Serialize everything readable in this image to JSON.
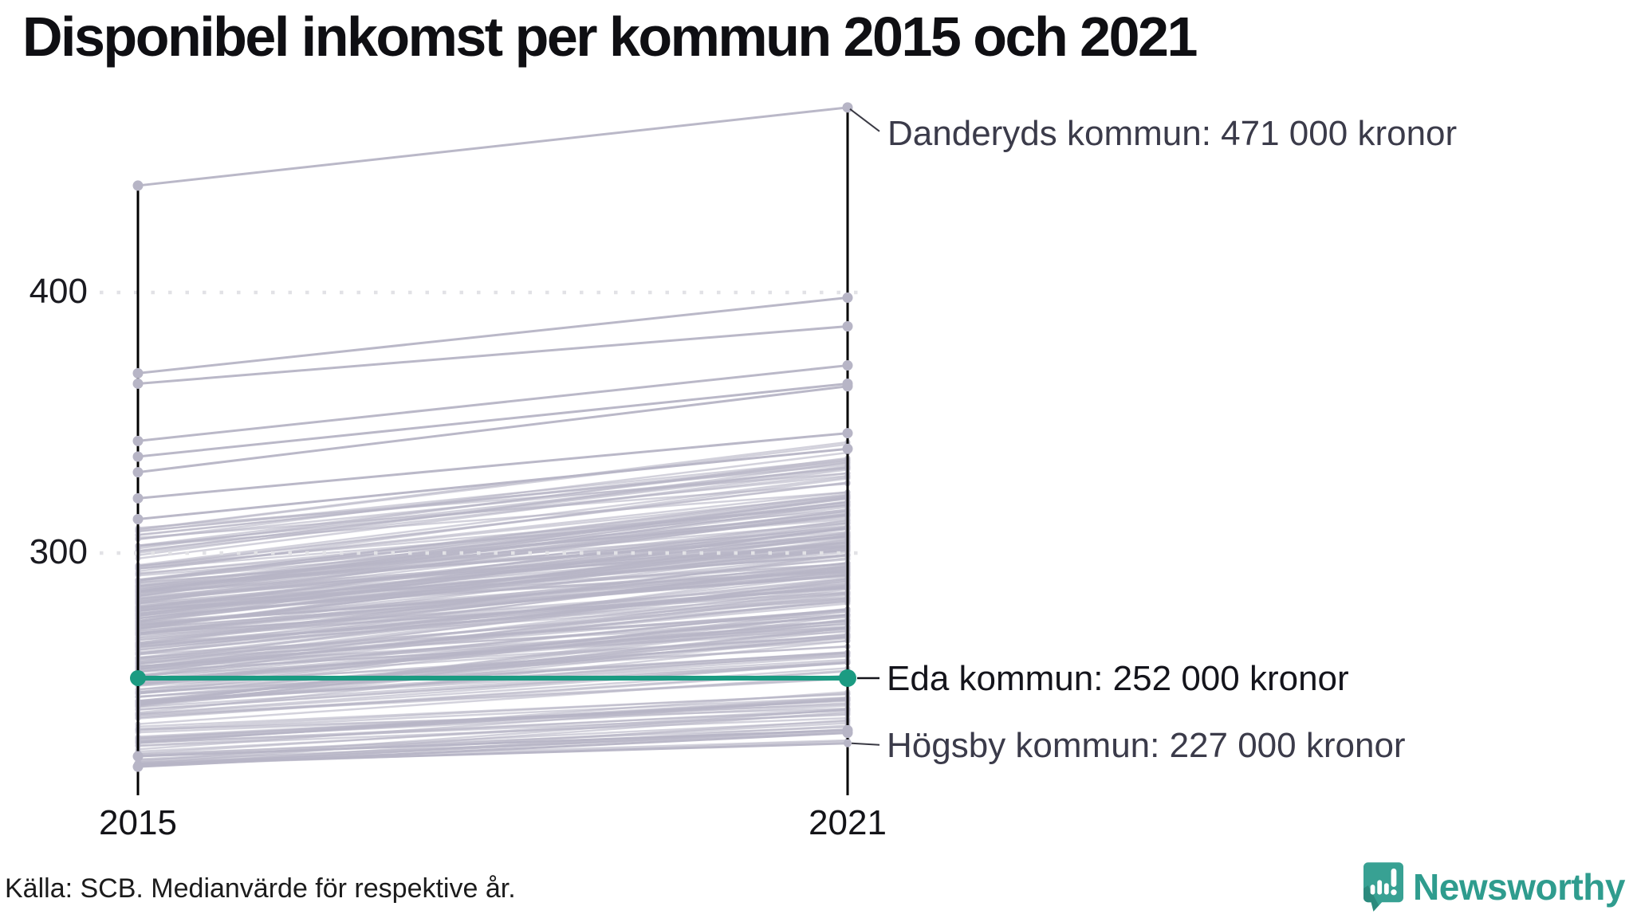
{
  "title": "Disponibel inkomst per kommun 2015 och 2021",
  "source_note": "Källa: SCB. Medianvärde för respektive år.",
  "branding": {
    "logo_text": "Newsworthy",
    "logo_color": "#2f9c8e",
    "icon": "newsworthy-speech-bubble-chart-icon"
  },
  "chart_data": {
    "type": "slope",
    "title": "Disponibel inkomst per kommun 2015 och 2021",
    "x_labels": [
      "2015",
      "2021"
    ],
    "y_ticks": [
      300,
      400
    ],
    "y_unit": "tusen kronor",
    "ylim": [
      207,
      485
    ],
    "grid": "dotted horizontal lines at y ticks, drawn above line mass",
    "colors": {
      "highlight": "#1b9b82",
      "line": "#b7b5c6",
      "axis": "#000000",
      "grid_dot": "#e2e2e6",
      "annotation_text": "#3b3b4a"
    },
    "annotations": [
      {
        "name": "danderyd",
        "label": "Danderyds kommun: 471 000 kronor",
        "year": 2021,
        "value": 471,
        "highlighted": false
      },
      {
        "name": "eda",
        "label": "Eda kommun: 252 000 kronor",
        "year": 2021,
        "value": 252,
        "highlighted": true
      },
      {
        "name": "hogsby",
        "label": "Högsby kommun: 227 000 kronor",
        "year": 2021,
        "value": 227,
        "highlighted": false
      }
    ],
    "named_series": [
      {
        "name": "Danderyds kommun",
        "values": [
          441,
          471
        ],
        "estimated_2015": true,
        "role": "top-outlier"
      },
      {
        "name": "Eda kommun",
        "values": [
          252,
          252
        ],
        "role": "highlighted"
      },
      {
        "name": "Högsby kommun",
        "values": [
          219,
          227
        ],
        "estimated_2015": true,
        "role": "bottom-outlier"
      }
    ],
    "outlier_series_estimated": [
      [
        369,
        398
      ],
      [
        365,
        387
      ],
      [
        343,
        372
      ],
      [
        337,
        365
      ],
      [
        331,
        364
      ],
      [
        321,
        346
      ],
      [
        313,
        340
      ],
      [
        222,
        232
      ],
      [
        218,
        231
      ]
    ],
    "background_mass": {
      "description": "remaining Swedish municipalities, unlabeled gray slope lines (values estimated from axis)",
      "count": 265,
      "bands": [
        {
          "share": 0.18,
          "v2015": [
            218,
            238
          ],
          "growth": [
            8,
            20
          ]
        },
        {
          "share": 0.67,
          "v2015": [
            238,
            288
          ],
          "growth": [
            14,
            36
          ]
        },
        {
          "share": 0.15,
          "v2015": [
            288,
            310
          ],
          "growth": [
            20,
            36
          ]
        }
      ]
    }
  }
}
